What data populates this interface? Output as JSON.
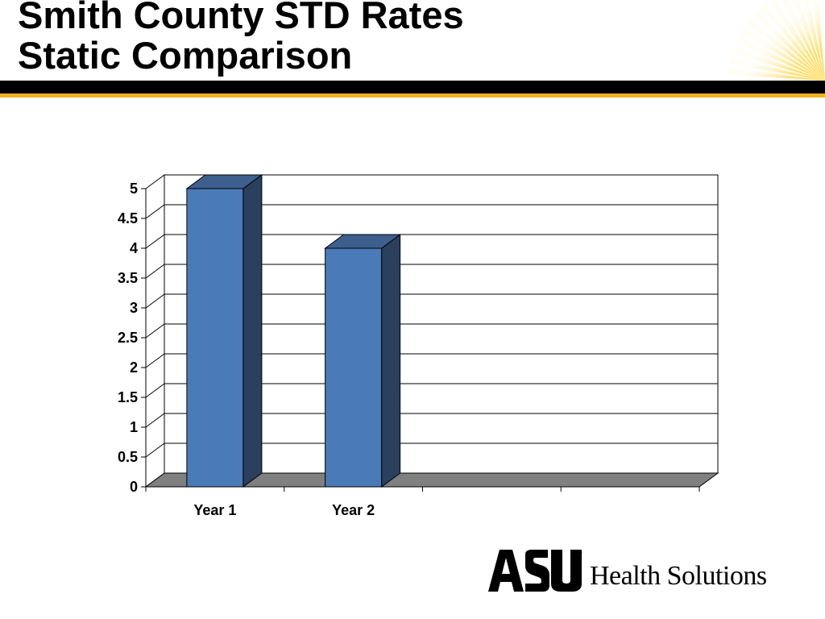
{
  "slide": {
    "title_line1": "Smith County STD Rates",
    "title_line2": "Static Comparison"
  },
  "branding": {
    "logo_mark": "ASU",
    "logo_text": "Health Solutions",
    "rule_color": "#000000",
    "accent_color": "#f2b41e",
    "sun_icon": "sunburst-icon"
  },
  "chart_data": {
    "type": "bar",
    "style": "3d-column",
    "categories": [
      "Year 1",
      "Year 2",
      "",
      ""
    ],
    "values": [
      5,
      4,
      null,
      null
    ],
    "title": "",
    "xlabel": "",
    "ylabel": "",
    "ylim": [
      0,
      5
    ],
    "ytick_step": 0.5,
    "yticks": [
      "0",
      "0.5",
      "1",
      "1.5",
      "2",
      "2.5",
      "3",
      "3.5",
      "4",
      "4.5",
      "5"
    ],
    "grid": true,
    "legend": "none",
    "bar_color": "#4a7ab8",
    "bar_side_color": "#2b3f5e",
    "bar_top_color": "#3d5f8e",
    "floor_color": "#808080"
  }
}
